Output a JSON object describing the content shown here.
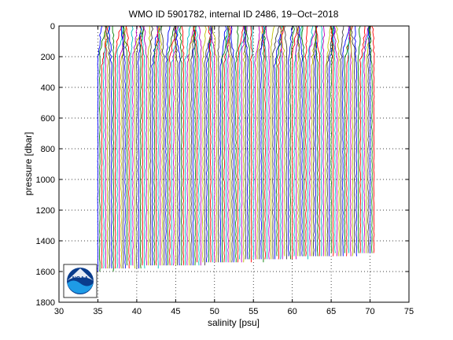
{
  "chart_data": {
    "type": "line",
    "title": "WMO ID 5901782, internal ID 2486, 19−Oct−2018",
    "xlabel": "salinity [psu]",
    "ylabel": "pressure [dbar]",
    "xlim": [
      30,
      75
    ],
    "ylim": [
      0,
      1800
    ],
    "y_reversed": true,
    "grid": true,
    "x_ticks": [
      30,
      35,
      40,
      45,
      50,
      55,
      60,
      65,
      70,
      75
    ],
    "y_ticks": [
      0,
      200,
      400,
      600,
      800,
      1000,
      1200,
      1400,
      1600,
      1800
    ],
    "x_tick_labels": [
      "30",
      "35",
      "40",
      "45",
      "50",
      "55",
      "60",
      "65",
      "70",
      "75"
    ],
    "y_tick_labels": [
      "0",
      "200",
      "400",
      "600",
      "800",
      "1000",
      "1200",
      "1400",
      "1600",
      "1800"
    ],
    "series_colors": [
      "#0000ff",
      "#008000",
      "#ff0000",
      "#00bfbf",
      "#bf00bf",
      "#bfbf00",
      "#404040"
    ],
    "profiles": {
      "count": 143,
      "first_offset": 35.0,
      "offset_step": 0.25,
      "deep_salinity": 34.9,
      "surface_salinity_range": [
        34.4,
        35.8
      ],
      "max_pressure_first": 1600,
      "max_pressure_last": 1490
    }
  },
  "logo": {
    "name": "NOAA",
    "text": "NOAA"
  }
}
